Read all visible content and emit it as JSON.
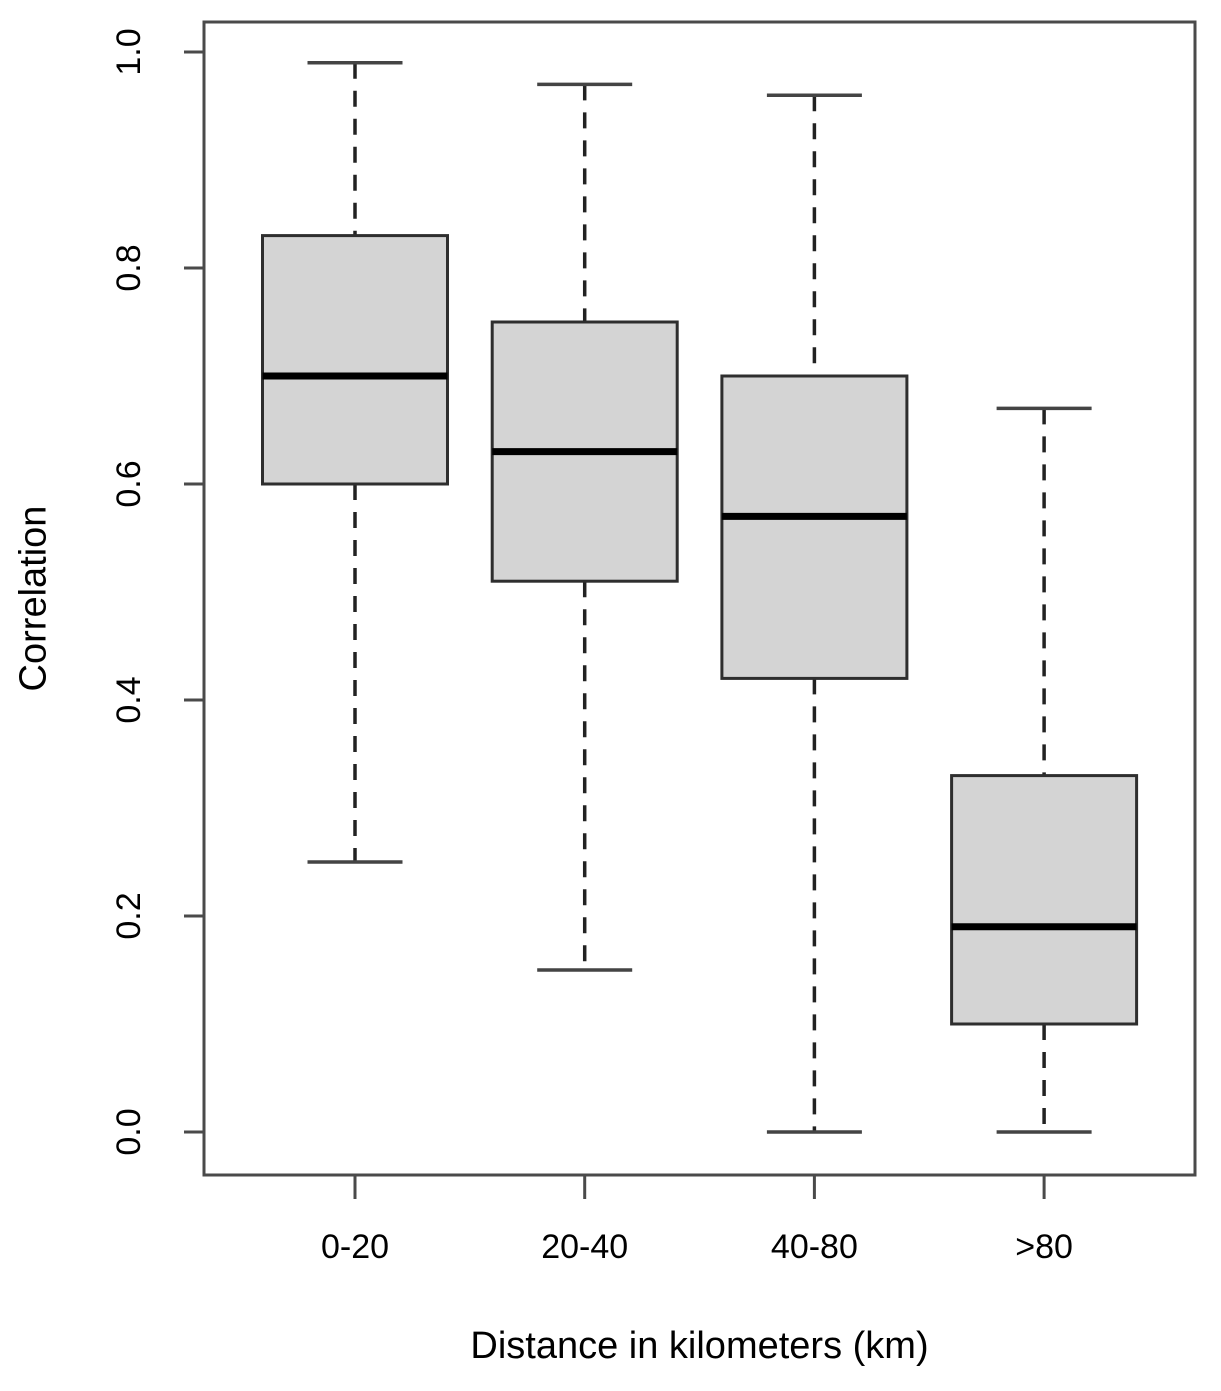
{
  "chart_data": {
    "type": "boxplot",
    "title": "",
    "xlabel": "Distance in kilometers (km)",
    "ylabel": "Correlation",
    "categories": [
      "0-20",
      "20-40",
      "40-80",
      ">80"
    ],
    "series": [
      {
        "name": "0-20",
        "whisker_low": 0.25,
        "q1": 0.6,
        "median": 0.7,
        "q3": 0.83,
        "whisker_high": 0.99
      },
      {
        "name": "20-40",
        "whisker_low": 0.15,
        "q1": 0.51,
        "median": 0.63,
        "q3": 0.75,
        "whisker_high": 0.97
      },
      {
        "name": "40-80",
        "whisker_low": 0.0,
        "q1": 0.42,
        "median": 0.57,
        "q3": 0.7,
        "whisker_high": 0.96
      },
      {
        "name": ">80",
        "whisker_low": 0.0,
        "q1": 0.1,
        "median": 0.19,
        "q3": 0.33,
        "whisker_high": 0.67
      }
    ],
    "ylim": [
      0.0,
      1.0
    ],
    "yticks": [
      0.0,
      0.2,
      0.4,
      0.6,
      0.8,
      1.0
    ],
    "ytick_labels": [
      "0.0",
      "0.2",
      "0.4",
      "0.6",
      "0.8",
      "1.0"
    ],
    "grid": false,
    "legend": "none",
    "colors": {
      "box_fill": "#d4d4d4",
      "box_border": "#2e2e2e",
      "median": "#000000",
      "whisker": "#222222",
      "whisker_cap": "#444444",
      "axis": "#4a4a4a",
      "text": "#000000",
      "background": "#ffffff"
    }
  }
}
